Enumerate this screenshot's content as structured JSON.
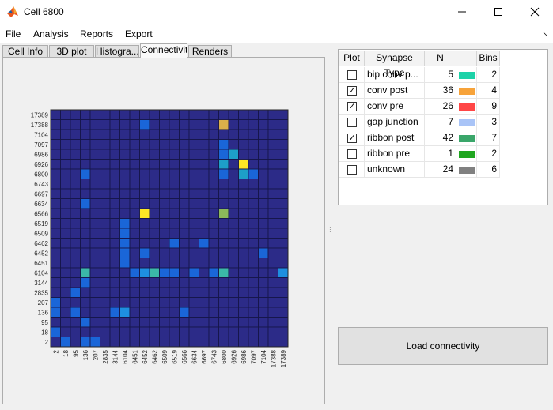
{
  "window": {
    "title": "Cell 6800"
  },
  "menu": [
    "File",
    "Analysis",
    "Reports",
    "Export"
  ],
  "tabs": [
    "Cell Info",
    "3D plot",
    "Histogra...",
    "Connectivity",
    "Renders"
  ],
  "chart_data": {
    "type": "heatmap",
    "x_categories": [
      "2",
      "18",
      "95",
      "136",
      "207",
      "2835",
      "3144",
      "6104",
      "6451",
      "6452",
      "6462",
      "6509",
      "6519",
      "6566",
      "6634",
      "6697",
      "6743",
      "6800",
      "6926",
      "6986",
      "7097",
      "7104",
      "17388",
      "17389"
    ],
    "y_categories": [
      "17389",
      "17388",
      "7104",
      "7097",
      "6986",
      "6926",
      "6800",
      "6743",
      "6697",
      "6634",
      "6566",
      "6519",
      "6509",
      "6462",
      "6452",
      "6451",
      "6104",
      "3144",
      "2835",
      "207",
      "136",
      "95",
      "18",
      "2"
    ],
    "colorscale": [
      "#2c2b88",
      "#1a66d8",
      "#1e8fe0",
      "#1d9fc8",
      "#3bb8a8",
      "#8bb85a",
      "#d9b04a",
      "#fde725"
    ],
    "cells": [
      {
        "row": 1,
        "col": 9,
        "level": 1
      },
      {
        "row": 1,
        "col": 17,
        "level": 6
      },
      {
        "row": 3,
        "col": 17,
        "level": 1
      },
      {
        "row": 4,
        "col": 17,
        "level": 1
      },
      {
        "row": 4,
        "col": 18,
        "level": 3
      },
      {
        "row": 5,
        "col": 17,
        "level": 3
      },
      {
        "row": 5,
        "col": 19,
        "level": 7
      },
      {
        "row": 6,
        "col": 3,
        "level": 1
      },
      {
        "row": 6,
        "col": 17,
        "level": 1
      },
      {
        "row": 6,
        "col": 19,
        "level": 3
      },
      {
        "row": 6,
        "col": 20,
        "level": 1
      },
      {
        "row": 9,
        "col": 3,
        "level": 1
      },
      {
        "row": 10,
        "col": 9,
        "level": 7
      },
      {
        "row": 10,
        "col": 17,
        "level": 5
      },
      {
        "row": 11,
        "col": 7,
        "level": 1
      },
      {
        "row": 12,
        "col": 7,
        "level": 1
      },
      {
        "row": 13,
        "col": 7,
        "level": 1
      },
      {
        "row": 13,
        "col": 12,
        "level": 1
      },
      {
        "row": 13,
        "col": 15,
        "level": 1
      },
      {
        "row": 14,
        "col": 7,
        "level": 1
      },
      {
        "row": 14,
        "col": 9,
        "level": 1
      },
      {
        "row": 14,
        "col": 21,
        "level": 1
      },
      {
        "row": 15,
        "col": 7,
        "level": 1
      },
      {
        "row": 16,
        "col": 3,
        "level": 4
      },
      {
        "row": 16,
        "col": 8,
        "level": 1
      },
      {
        "row": 16,
        "col": 9,
        "level": 2
      },
      {
        "row": 16,
        "col": 10,
        "level": 4
      },
      {
        "row": 16,
        "col": 11,
        "level": 1
      },
      {
        "row": 16,
        "col": 12,
        "level": 1
      },
      {
        "row": 16,
        "col": 14,
        "level": 1
      },
      {
        "row": 16,
        "col": 16,
        "level": 1
      },
      {
        "row": 16,
        "col": 17,
        "level": 4
      },
      {
        "row": 16,
        "col": 23,
        "level": 2
      },
      {
        "row": 17,
        "col": 3,
        "level": 1
      },
      {
        "row": 18,
        "col": 2,
        "level": 1
      },
      {
        "row": 19,
        "col": 0,
        "level": 1
      },
      {
        "row": 20,
        "col": 0,
        "level": 1
      },
      {
        "row": 20,
        "col": 2,
        "level": 1
      },
      {
        "row": 20,
        "col": 6,
        "level": 1
      },
      {
        "row": 20,
        "col": 7,
        "level": 2
      },
      {
        "row": 20,
        "col": 13,
        "level": 1
      },
      {
        "row": 21,
        "col": 3,
        "level": 1
      },
      {
        "row": 22,
        "col": 0,
        "level": 1
      },
      {
        "row": 23,
        "col": 1,
        "level": 1
      },
      {
        "row": 23,
        "col": 3,
        "level": 1
      },
      {
        "row": 23,
        "col": 4,
        "level": 1
      }
    ]
  },
  "synapse_table": {
    "headers": [
      "Plot",
      "Synapse Type",
      "N",
      "",
      "Bins"
    ],
    "rows": [
      {
        "checked": false,
        "type": "bip conv p...",
        "n": "5",
        "color": "#1cd2a8",
        "bins": "2"
      },
      {
        "checked": true,
        "type": "conv post",
        "n": "36",
        "color": "#f7a33a",
        "bins": "4"
      },
      {
        "checked": true,
        "type": "conv pre",
        "n": "26",
        "color": "#ff4646",
        "bins": "9"
      },
      {
        "checked": false,
        "type": "gap junction",
        "n": "7",
        "color": "#a9c4f7",
        "bins": "3"
      },
      {
        "checked": true,
        "type": "ribbon post",
        "n": "42",
        "color": "#3aa66a",
        "bins": "7"
      },
      {
        "checked": false,
        "type": "ribbon pre",
        "n": "1",
        "color": "#1fa61f",
        "bins": "2"
      },
      {
        "checked": false,
        "type": "unknown",
        "n": "24",
        "color": "#808080",
        "bins": "6"
      }
    ]
  },
  "load_button": "Load connectivity",
  "check_mark": "✓"
}
